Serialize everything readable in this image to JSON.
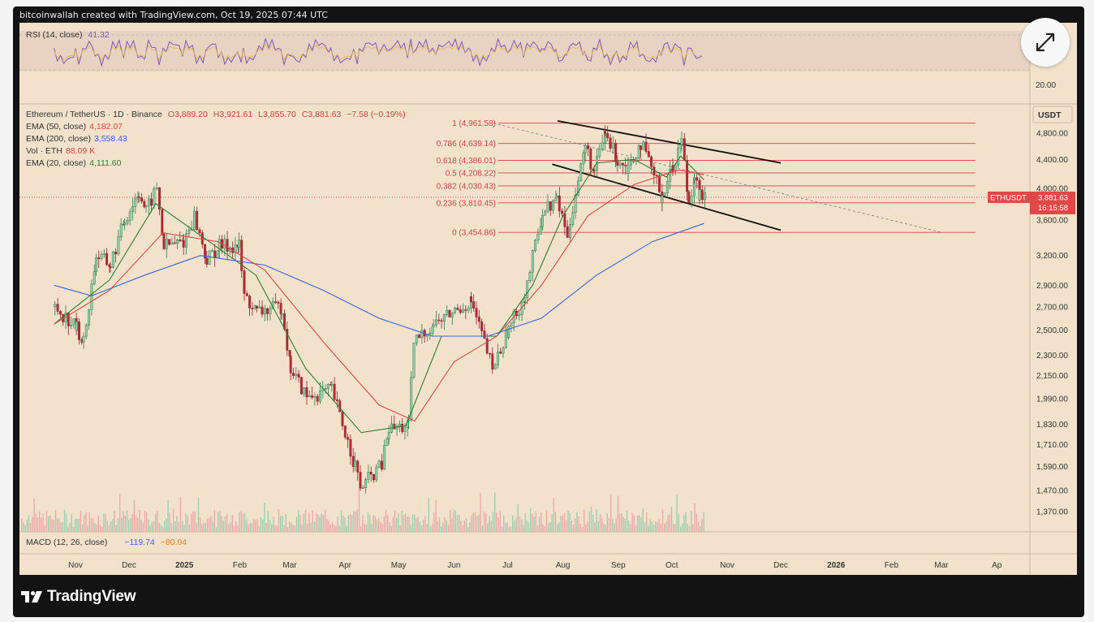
{
  "header": {
    "attribution": "bitcoinwallah created with TradingView.com, Oct 19, 2025 07:44 UTC"
  },
  "footer": {
    "brand": "TradingView"
  },
  "rsi_panel": {
    "label": "RSI (14, close)",
    "value": "41.32",
    "axis_tick": "20.00"
  },
  "symbol": {
    "name": "Ethereum / TetherUS · 1D · Binance",
    "o": "O3,889.20",
    "h": "H3,921.61",
    "l": "L3,855.70",
    "c": "C3,881.63",
    "change": "−7.58 (−0.19%)"
  },
  "indicators": [
    {
      "label": "EMA (50, close)",
      "value": "4,182.07",
      "color": "#e04747"
    },
    {
      "label": "EMA (200, close)",
      "value": "3,558.43",
      "color": "#3d62d8"
    },
    {
      "label": "Vol · ETH",
      "value": "88.09 K",
      "color": "#e04747"
    },
    {
      "label": "EMA (20, close)",
      "value": "4,111.60",
      "color": "#2e7d32"
    }
  ],
  "macd": {
    "label": "MACD (12, 26, close)",
    "value1": "−119.74",
    "value2": "−80.04"
  },
  "price_axis": {
    "unit": "USDT",
    "ticks": [
      "4,800.00",
      "4,400.00",
      "4,000.00",
      "3,600.00",
      "3,200.00",
      "2,900.00",
      "2,700.00",
      "2,500.00",
      "2,300.00",
      "2,150.00",
      "1,990.00",
      "1,830.00",
      "1,710.00",
      "1,590.00",
      "1,470.00",
      "1,370.00"
    ],
    "tick_values": [
      4800,
      4400,
      4000,
      3600,
      3200,
      2900,
      2700,
      2500,
      2300,
      2150,
      1990,
      1830,
      1710,
      1590,
      1470,
      1370
    ],
    "ticker": "ETHUSDT",
    "last_price": "3,881.63",
    "countdown": "16:15:58",
    "ticker_color": "#e04747"
  },
  "time_axis": {
    "labels": [
      "Nov",
      "Dec",
      "2025",
      "Feb",
      "Mar",
      "Apr",
      "May",
      "Jun",
      "Jul",
      "Aug",
      "Sep",
      "Oct",
      "Nov",
      "Dec",
      "2026",
      "Feb",
      "Mar",
      "Ap"
    ],
    "bold": [
      "2025",
      "2026"
    ]
  },
  "chart_data": {
    "type": "candlestick",
    "title": "Ethereum / TetherUS · 1D · Binance",
    "y_scale": "log",
    "fib_levels": [
      {
        "ratio": "1",
        "price": 4961.58,
        "label": "1 (4,961.58)"
      },
      {
        "ratio": "0.786",
        "price": 4639.14,
        "label": "0.786 (4,639.14)"
      },
      {
        "ratio": "0.618",
        "price": 4386.01,
        "label": "0.618 (4,386.01)"
      },
      {
        "ratio": "0.5",
        "price": 4208.22,
        "label": "0.5 (4,208.22)"
      },
      {
        "ratio": "0.382",
        "price": 4030.43,
        "label": "0.382 (4,030.43)"
      },
      {
        "ratio": "0.236",
        "price": 3810.45,
        "label": "0.236 (3,810.45)"
      },
      {
        "ratio": "0",
        "price": 3454.86,
        "label": "0 (3,454.86)"
      }
    ],
    "price_path": [
      [
        "2024-10-20",
        2700
      ],
      [
        "2024-11-01",
        2520
      ],
      [
        "2024-11-05",
        2400
      ],
      [
        "2024-11-12",
        3200
      ],
      [
        "2024-11-20",
        3100
      ],
      [
        "2024-11-28",
        3600
      ],
      [
        "2024-12-06",
        3950
      ],
      [
        "2024-12-10",
        3700
      ],
      [
        "2024-12-16",
        4000
      ],
      [
        "2024-12-20",
        3300
      ],
      [
        "2024-12-31",
        3350
      ],
      [
        "2025-01-06",
        3650
      ],
      [
        "2025-01-13",
        3150
      ],
      [
        "2025-01-20",
        3300
      ],
      [
        "2025-01-31",
        3300
      ],
      [
        "2025-02-03",
        2800
      ],
      [
        "2025-02-10",
        2650
      ],
      [
        "2025-02-24",
        2700
      ],
      [
        "2025-03-01",
        2200
      ],
      [
        "2025-03-10",
        2000
      ],
      [
        "2025-03-24",
        2050
      ],
      [
        "2025-04-06",
        1600
      ],
      [
        "2025-04-09",
        1480
      ],
      [
        "2025-04-21",
        1600
      ],
      [
        "2025-04-25",
        1800
      ],
      [
        "2025-05-06",
        1820
      ],
      [
        "2025-05-09",
        2400
      ],
      [
        "2025-05-20",
        2550
      ],
      [
        "2025-06-10",
        2750
      ],
      [
        "2025-06-22",
        2200
      ],
      [
        "2025-07-01",
        2500
      ],
      [
        "2025-07-10",
        2800
      ],
      [
        "2025-07-20",
        3700
      ],
      [
        "2025-07-28",
        3850
      ],
      [
        "2025-08-03",
        3450
      ],
      [
        "2025-08-13",
        4600
      ],
      [
        "2025-08-18",
        4200
      ],
      [
        "2025-08-24",
        4800
      ],
      [
        "2025-08-31",
        4400
      ],
      [
        "2025-09-06",
        4300
      ],
      [
        "2025-09-13",
        4650
      ],
      [
        "2025-09-25",
        3900
      ],
      [
        "2025-10-01",
        4300
      ],
      [
        "2025-10-06",
        4700
      ],
      [
        "2025-10-10",
        3800
      ],
      [
        "2025-10-13",
        4200
      ],
      [
        "2025-10-16",
        3900
      ],
      [
        "2025-10-19",
        3881.63
      ]
    ],
    "series": [
      {
        "name": "EMA (20, close)",
        "color": "#2e7d32",
        "points": [
          [
            "2024-10-20",
            2550
          ],
          [
            "2024-11-20",
            2950
          ],
          [
            "2024-12-16",
            3800
          ],
          [
            "2025-01-15",
            3350
          ],
          [
            "2025-02-10",
            3000
          ],
          [
            "2025-03-10",
            2200
          ],
          [
            "2025-04-10",
            1780
          ],
          [
            "2025-05-05",
            1820
          ],
          [
            "2025-05-25",
            2450
          ],
          [
            "2025-06-25",
            2450
          ],
          [
            "2025-07-15",
            2900
          ],
          [
            "2025-08-01",
            3650
          ],
          [
            "2025-08-20",
            4350
          ],
          [
            "2025-09-10",
            4400
          ],
          [
            "2025-09-28",
            4150
          ],
          [
            "2025-10-06",
            4450
          ],
          [
            "2025-10-19",
            4111.6
          ]
        ]
      },
      {
        "name": "EMA (50, close)",
        "color": "#e04747",
        "points": [
          [
            "2024-10-20",
            2550
          ],
          [
            "2024-11-20",
            2850
          ],
          [
            "2024-12-20",
            3450
          ],
          [
            "2025-01-20",
            3350
          ],
          [
            "2025-02-15",
            3050
          ],
          [
            "2025-03-20",
            2400
          ],
          [
            "2025-04-20",
            1950
          ],
          [
            "2025-05-10",
            1850
          ],
          [
            "2025-06-01",
            2250
          ],
          [
            "2025-06-25",
            2450
          ],
          [
            "2025-07-20",
            2900
          ],
          [
            "2025-08-15",
            3650
          ],
          [
            "2025-09-10",
            4050
          ],
          [
            "2025-10-05",
            4250
          ],
          [
            "2025-10-19",
            4182.07
          ]
        ]
      },
      {
        "name": "EMA (200, close)",
        "color": "#3d62d8",
        "points": [
          [
            "2024-10-20",
            2900
          ],
          [
            "2024-11-10",
            2800
          ],
          [
            "2024-12-10",
            3000
          ],
          [
            "2025-01-10",
            3200
          ],
          [
            "2025-02-15",
            3100
          ],
          [
            "2025-03-20",
            2850
          ],
          [
            "2025-04-20",
            2600
          ],
          [
            "2025-05-20",
            2450
          ],
          [
            "2025-06-20",
            2450
          ],
          [
            "2025-07-20",
            2600
          ],
          [
            "2025-08-20",
            3000
          ],
          [
            "2025-09-20",
            3350
          ],
          [
            "2025-10-19",
            3558.43
          ]
        ]
      }
    ],
    "trendlines": [
      {
        "name": "channel-upper",
        "from": [
          "2025-07-29",
          5000
        ],
        "to": [
          "2025-12-01",
          4350
        ]
      },
      {
        "name": "channel-lower",
        "from": [
          "2025-07-26",
          4330
        ],
        "to": [
          "2025-12-01",
          3480
        ]
      },
      {
        "name": "fib-diagonal",
        "from": [
          "2025-06-23",
          4961.58
        ],
        "to": [
          "2026-03-01",
          3454.86
        ]
      }
    ],
    "ylim": [
      1290,
      5150
    ]
  }
}
